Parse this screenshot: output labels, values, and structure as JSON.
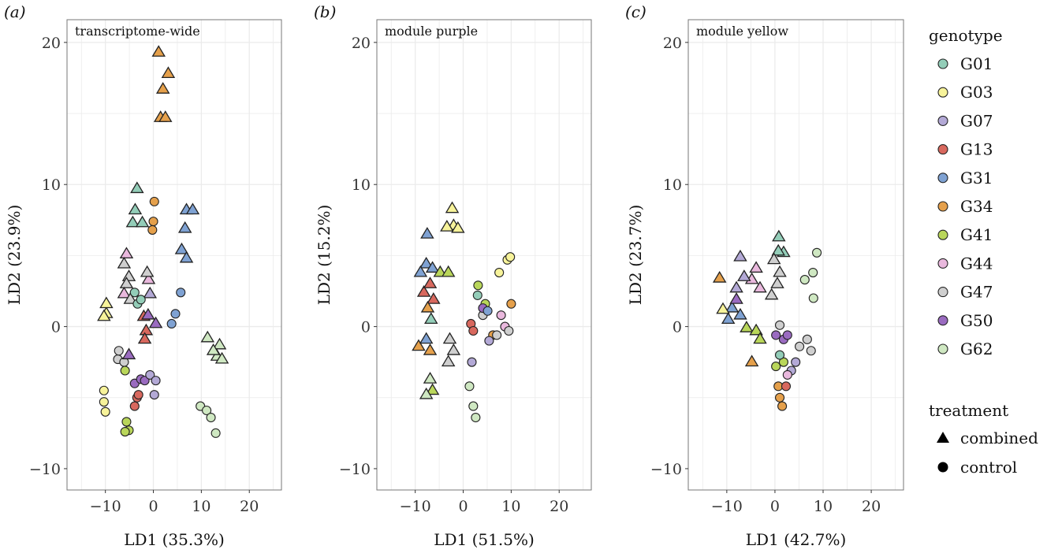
{
  "colors": {
    "G01": "#93cdb8",
    "G03": "#f7f39a",
    "G07": "#b3a9d6",
    "G13": "#d8685e",
    "G31": "#7fa2d3",
    "G34": "#e5a04b",
    "G41": "#b9d65a",
    "G44": "#e9b8dd",
    "G47": "#cfcfcf",
    "G50": "#9a6bc0",
    "G62": "#cfe8c2"
  },
  "legend": {
    "genotype_title": "genotype",
    "genotypes": [
      "G01",
      "G03",
      "G07",
      "G13",
      "G31",
      "G34",
      "G41",
      "G44",
      "G47",
      "G50",
      "G62"
    ],
    "treatment_title": "treatment",
    "treatments": [
      "combined",
      "control"
    ]
  },
  "chart_data": [
    {
      "type": "scatter",
      "tag": "(a)",
      "title": "transcriptome-wide",
      "xlabel": "LD1 (35.3%)",
      "ylabel": "LD2 (23.9%)",
      "xlim": [
        -18,
        26.7
      ],
      "ylim": [
        -11.5,
        21.6
      ],
      "xticks": [
        -10,
        0,
        10,
        20
      ],
      "yticks": [
        -10,
        0,
        10,
        20
      ],
      "grid": true,
      "points": [
        [
          "G34",
          "combined",
          1.1,
          19.3
        ],
        [
          "G34",
          "combined",
          3.1,
          17.8
        ],
        [
          "G34",
          "combined",
          2,
          16.7
        ],
        [
          "G34",
          "combined",
          1.5,
          14.7
        ],
        [
          "G34",
          "combined",
          2.5,
          14.7
        ],
        [
          "G01",
          "combined",
          -3.4,
          9.7
        ],
        [
          "G01",
          "combined",
          -3.8,
          8.2
        ],
        [
          "G01",
          "combined",
          -4.3,
          7.3
        ],
        [
          "G01",
          "combined",
          -2.3,
          7.3
        ],
        [
          "G34",
          "control",
          0.2,
          8.8
        ],
        [
          "G34",
          "control",
          0,
          7.4
        ],
        [
          "G34",
          "control",
          -0.2,
          6.8
        ],
        [
          "G31",
          "combined",
          6.9,
          8.2
        ],
        [
          "G31",
          "combined",
          8.2,
          8.2
        ],
        [
          "G31",
          "combined",
          6.6,
          6.9
        ],
        [
          "G31",
          "combined",
          5.9,
          5.4
        ],
        [
          "G31",
          "combined",
          6.9,
          4.8
        ],
        [
          "G31",
          "control",
          5.7,
          2.4
        ],
        [
          "G31",
          "control",
          4.6,
          0.9
        ],
        [
          "G31",
          "control",
          3.8,
          0.2
        ],
        [
          "G44",
          "combined",
          -5.6,
          5.1
        ],
        [
          "G47",
          "combined",
          -6.1,
          4.4
        ],
        [
          "G47",
          "combined",
          -5.1,
          3.5
        ],
        [
          "G47",
          "combined",
          -5.6,
          3.0
        ],
        [
          "G44",
          "combined",
          -6.1,
          2.3
        ],
        [
          "G47",
          "combined",
          -4.8,
          1.9
        ],
        [
          "G07",
          "combined",
          -0.7,
          2.3
        ],
        [
          "G44",
          "combined",
          -1.0,
          3.3
        ],
        [
          "G47",
          "combined",
          -1.3,
          3.8
        ],
        [
          "G01",
          "control",
          -3.9,
          2.4
        ],
        [
          "G01",
          "control",
          -3.3,
          1.6
        ],
        [
          "G01",
          "control",
          -2.6,
          1.9
        ],
        [
          "G03",
          "combined",
          -9.8,
          0.9
        ],
        [
          "G03",
          "combined",
          -10.3,
          0.7
        ],
        [
          "G03",
          "combined",
          -9.8,
          1.6
        ],
        [
          "G13",
          "combined",
          -2,
          0.7
        ],
        [
          "G13",
          "combined",
          -1.5,
          -0.3
        ],
        [
          "G13",
          "combined",
          -1.8,
          -0.9
        ],
        [
          "G50",
          "combined",
          -1.1,
          0.8
        ],
        [
          "G50",
          "combined",
          0.5,
          0.2
        ],
        [
          "G47",
          "control",
          -7.4,
          -2.3
        ],
        [
          "G47",
          "control",
          -7.2,
          -1.7
        ],
        [
          "G47",
          "control",
          -6.1,
          -2.5
        ],
        [
          "G41",
          "control",
          -5.9,
          -3.1
        ],
        [
          "G50",
          "combined",
          -5.1,
          -2
        ],
        [
          "G50",
          "control",
          -3.9,
          -4
        ],
        [
          "G50",
          "control",
          -2.6,
          -3.7
        ],
        [
          "G50",
          "control",
          -1.8,
          -3.8
        ],
        [
          "G07",
          "control",
          -0.7,
          -3.4
        ],
        [
          "G07",
          "control",
          0.5,
          -3.8
        ],
        [
          "G07",
          "control",
          0.2,
          -4.8
        ],
        [
          "G13",
          "control",
          -3.4,
          -5
        ],
        [
          "G13",
          "control",
          -3.9,
          -5.6
        ],
        [
          "G13",
          "control",
          -3.1,
          -4.8
        ],
        [
          "G03",
          "control",
          -10.3,
          -4.5
        ],
        [
          "G03",
          "control",
          -10.3,
          -5.3
        ],
        [
          "G03",
          "control",
          -10,
          -6
        ],
        [
          "G41",
          "control",
          -5.6,
          -6.7
        ],
        [
          "G41",
          "control",
          -5.1,
          -7.3
        ],
        [
          "G41",
          "control",
          -5.9,
          -7.4
        ],
        [
          "G62",
          "combined",
          11.3,
          -0.8
        ],
        [
          "G62",
          "combined",
          13.8,
          -1.3
        ],
        [
          "G62",
          "combined",
          13.3,
          -2.1
        ],
        [
          "G62",
          "combined",
          12.5,
          -1.7
        ],
        [
          "G62",
          "combined",
          14.3,
          -2.3
        ],
        [
          "G62",
          "control",
          9.8,
          -5.6
        ],
        [
          "G62",
          "control",
          11.1,
          -5.9
        ],
        [
          "G62",
          "control",
          12,
          -6.4
        ],
        [
          "G62",
          "control",
          13,
          -7.5
        ]
      ]
    },
    {
      "type": "scatter",
      "tag": "(b)",
      "title": "module purple",
      "xlabel": "LD1 (51.5%)",
      "ylabel": "LD2 (15.2%)",
      "xlim": [
        -18,
        26.7
      ],
      "ylim": [
        -11.5,
        21.6
      ],
      "xticks": [
        -10,
        0,
        10,
        20
      ],
      "yticks": [
        -10,
        0,
        10,
        20
      ],
      "grid": true,
      "points": [
        [
          "G03",
          "combined",
          -2.3,
          8.3
        ],
        [
          "G03",
          "combined",
          -2,
          7.1
        ],
        [
          "G03",
          "combined",
          -3.4,
          7
        ],
        [
          "G03",
          "combined",
          -1.1,
          6.9
        ],
        [
          "G31",
          "combined",
          -7.5,
          6.5
        ],
        [
          "G31",
          "combined",
          -7.7,
          4.4
        ],
        [
          "G31",
          "combined",
          -6.4,
          4.1
        ],
        [
          "G31",
          "combined",
          -8.9,
          3.8
        ],
        [
          "G13",
          "combined",
          -8.2,
          2.4
        ],
        [
          "G13",
          "combined",
          -6.9,
          3
        ],
        [
          "G13",
          "combined",
          -6.2,
          1.9
        ],
        [
          "G34",
          "combined",
          -7.4,
          1.3
        ],
        [
          "G41",
          "combined",
          -4.8,
          3.8
        ],
        [
          "G41",
          "combined",
          -3.1,
          3.8
        ],
        [
          "G01",
          "combined",
          -6.7,
          0.5
        ],
        [
          "G34",
          "combined",
          -9.3,
          -1.4
        ],
        [
          "G31",
          "combined",
          -7.7,
          -0.9
        ],
        [
          "G34",
          "combined",
          -6.9,
          -1.7
        ],
        [
          "G47",
          "combined",
          -2.8,
          -0.9
        ],
        [
          "G47",
          "combined",
          -2,
          -1.7
        ],
        [
          "G47",
          "combined",
          -3.1,
          -2.5
        ],
        [
          "G62",
          "combined",
          -6.9,
          -3.7
        ],
        [
          "G41",
          "combined",
          -6.4,
          -4.5
        ],
        [
          "G62",
          "combined",
          -7.7,
          -4.8
        ],
        [
          "G07",
          "control",
          1.8,
          -2.5
        ],
        [
          "G62",
          "control",
          1.3,
          -4.2
        ],
        [
          "G62",
          "control",
          2.1,
          -5.6
        ],
        [
          "G62",
          "control",
          2.6,
          -6.4
        ],
        [
          "G03",
          "control",
          9.2,
          4.7
        ],
        [
          "G03",
          "control",
          9.8,
          4.9
        ],
        [
          "G03",
          "control",
          7.5,
          3.8
        ],
        [
          "G13",
          "control",
          1.6,
          0.2
        ],
        [
          "G13",
          "control",
          2.1,
          -0.3
        ],
        [
          "G34",
          "control",
          6.2,
          -0.6
        ],
        [
          "G34",
          "control",
          10,
          1.6
        ],
        [
          "G41",
          "control",
          3.1,
          2.9
        ],
        [
          "G41",
          "control",
          4.6,
          1.6
        ],
        [
          "G44",
          "control",
          7.9,
          0.8
        ],
        [
          "G44",
          "control",
          8.7,
          0
        ],
        [
          "G47",
          "control",
          7,
          -0.6
        ],
        [
          "G47",
          "control",
          9.5,
          -0.3
        ],
        [
          "G47",
          "control",
          4.1,
          0.8
        ],
        [
          "G50",
          "control",
          4.1,
          1.3
        ],
        [
          "G31",
          "control",
          5.1,
          1.1
        ],
        [
          "G07",
          "control",
          5.4,
          -1
        ],
        [
          "G01",
          "control",
          3,
          2.2
        ]
      ]
    },
    {
      "type": "scatter",
      "tag": "(c)",
      "title": "module yellow",
      "xlabel": "LD1 (42.7%)",
      "ylabel": "LD2 (23.7%)",
      "xlim": [
        -18,
        26.7
      ],
      "ylim": [
        -11.5,
        21.6
      ],
      "xticks": [
        -10,
        0,
        10,
        20
      ],
      "yticks": [
        -10,
        0,
        10,
        20
      ],
      "grid": true,
      "points": [
        [
          "G01",
          "combined",
          0.8,
          6.3
        ],
        [
          "G01",
          "combined",
          1.8,
          5.2
        ],
        [
          "G01",
          "combined",
          0.7,
          5.3
        ],
        [
          "G47",
          "combined",
          -0.2,
          4.7
        ],
        [
          "G47",
          "combined",
          1,
          3.8
        ],
        [
          "G47",
          "combined",
          0.5,
          3
        ],
        [
          "G47",
          "combined",
          -0.7,
          2.2
        ],
        [
          "G44",
          "combined",
          -3.9,
          4.1
        ],
        [
          "G44",
          "combined",
          -4.8,
          3.3
        ],
        [
          "G44",
          "combined",
          -3.1,
          2.7
        ],
        [
          "G07",
          "combined",
          -7.2,
          4.9
        ],
        [
          "G07",
          "combined",
          -6.4,
          3.5
        ],
        [
          "G07",
          "combined",
          -8,
          2.7
        ],
        [
          "G34",
          "combined",
          -11.5,
          3.4
        ],
        [
          "G34",
          "combined",
          -4.8,
          -2.5
        ],
        [
          "G31",
          "combined",
          -8.9,
          1.3
        ],
        [
          "G31",
          "combined",
          -7.2,
          0.8
        ],
        [
          "G31",
          "combined",
          -9.7,
          0.5
        ],
        [
          "G50",
          "combined",
          -8,
          1.9
        ],
        [
          "G41",
          "combined",
          -5.9,
          -0.1
        ],
        [
          "G41",
          "combined",
          -3.9,
          -0.3
        ],
        [
          "G41",
          "combined",
          -3.1,
          -0.9
        ],
        [
          "G03",
          "combined",
          -10.8,
          1.2
        ],
        [
          "G62",
          "control",
          8.7,
          5.2
        ],
        [
          "G62",
          "control",
          7.9,
          3.8
        ],
        [
          "G62",
          "control",
          6.2,
          3.3
        ],
        [
          "G62",
          "control",
          8,
          2
        ],
        [
          "G47",
          "control",
          5.1,
          -1.4
        ],
        [
          "G47",
          "control",
          6.7,
          -0.9
        ],
        [
          "G47",
          "control",
          7.5,
          -1.7
        ],
        [
          "G47",
          "control",
          1,
          0.1
        ],
        [
          "G50",
          "control",
          0.2,
          -0.6
        ],
        [
          "G50",
          "control",
          1.8,
          -0.9
        ],
        [
          "G50",
          "control",
          2.6,
          -0.6
        ],
        [
          "G41",
          "control",
          0.2,
          -2.8
        ],
        [
          "G41",
          "control",
          1.8,
          -2.5
        ],
        [
          "G01",
          "control",
          1,
          -2
        ],
        [
          "G07",
          "control",
          3.4,
          -3.1
        ],
        [
          "G07",
          "control",
          4.3,
          -2.5
        ],
        [
          "G44",
          "control",
          2.6,
          -3.4
        ],
        [
          "G34",
          "control",
          0.7,
          -4.2
        ],
        [
          "G34",
          "control",
          1,
          -5
        ],
        [
          "G34",
          "control",
          1.5,
          -5.6
        ],
        [
          "G13",
          "control",
          2.3,
          -4.2
        ]
      ]
    }
  ]
}
